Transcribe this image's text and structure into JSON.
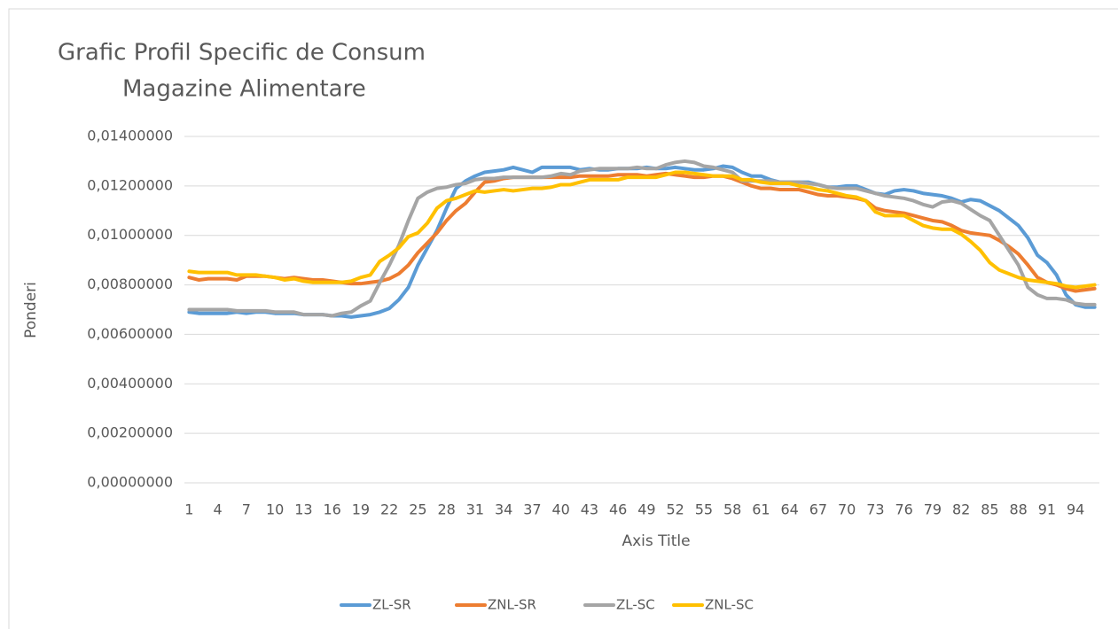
{
  "chart_data": {
    "type": "line",
    "title": [
      "Grafic Profil Specific de Consum",
      "Magazine Alimentare"
    ],
    "x_label": "Axis Title",
    "y_label": "Ponderi",
    "categories": [
      1,
      null,
      null,
      4,
      null,
      null,
      7,
      null,
      null,
      10,
      null,
      null,
      13,
      null,
      null,
      16,
      null,
      null,
      19,
      null,
      null,
      22,
      null,
      null,
      25,
      null,
      null,
      28,
      null,
      null,
      31,
      null,
      null,
      34,
      null,
      null,
      37,
      null,
      null,
      40,
      null,
      null,
      43,
      null,
      null,
      46,
      null,
      null,
      49,
      null,
      null,
      52,
      null,
      null,
      55,
      null,
      null,
      58,
      null,
      null,
      61,
      null,
      null,
      64,
      null,
      null,
      67,
      null,
      null,
      70,
      null,
      null,
      73,
      null,
      null,
      76,
      null,
      null,
      79,
      null,
      null,
      82,
      null,
      null,
      85,
      null,
      null,
      88,
      null,
      null,
      91,
      null,
      null,
      94,
      null,
      null
    ],
    "series": [
      {
        "name": "ZL-SR",
        "color": "#5b9bd5",
        "values": [
          0.0069,
          0.00685,
          0.00685,
          0.00685,
          0.00685,
          0.0069,
          0.00685,
          0.0069,
          0.0069,
          0.00685,
          0.00685,
          0.00685,
          0.0068,
          0.0068,
          0.0068,
          0.00675,
          0.00675,
          0.0067,
          0.00675,
          0.0068,
          0.0069,
          0.00705,
          0.0074,
          0.0079,
          0.0088,
          0.0095,
          0.0102,
          0.0111,
          0.0119,
          0.0122,
          0.0124,
          0.01255,
          0.0126,
          0.01265,
          0.01275,
          0.01265,
          0.01255,
          0.01275,
          0.01275,
          0.01275,
          0.01275,
          0.01265,
          0.0127,
          0.01265,
          0.01265,
          0.0127,
          0.0127,
          0.0127,
          0.01275,
          0.0127,
          0.0127,
          0.01275,
          0.0127,
          0.01265,
          0.01265,
          0.0127,
          0.0128,
          0.01275,
          0.01255,
          0.0124,
          0.0124,
          0.01225,
          0.01215,
          0.01215,
          0.01215,
          0.01215,
          0.01205,
          0.01195,
          0.01195,
          0.012,
          0.012,
          0.01185,
          0.0117,
          0.01165,
          0.0118,
          0.01185,
          0.0118,
          0.0117,
          0.01165,
          0.0116,
          0.0115,
          0.01135,
          0.01145,
          0.0114,
          0.0112,
          0.011,
          0.0107,
          0.0104,
          0.0099,
          0.0092,
          0.0089,
          0.0084,
          0.0076,
          0.0072,
          0.0071,
          0.0071
        ]
      },
      {
        "name": "ZNL-SR",
        "color": "#ed7d31",
        "values": [
          0.0083,
          0.0082,
          0.00825,
          0.00825,
          0.00825,
          0.0082,
          0.00835,
          0.00835,
          0.00835,
          0.0083,
          0.00825,
          0.0083,
          0.00825,
          0.0082,
          0.0082,
          0.00815,
          0.0081,
          0.00805,
          0.00805,
          0.0081,
          0.00815,
          0.00825,
          0.00845,
          0.0088,
          0.0093,
          0.0097,
          0.0101,
          0.0106,
          0.011,
          0.0113,
          0.01175,
          0.01215,
          0.0122,
          0.0123,
          0.01235,
          0.01235,
          0.01235,
          0.01235,
          0.01235,
          0.01235,
          0.01235,
          0.0124,
          0.0124,
          0.0124,
          0.0124,
          0.01245,
          0.01245,
          0.01245,
          0.0124,
          0.01245,
          0.0125,
          0.01245,
          0.0124,
          0.01235,
          0.01235,
          0.0124,
          0.0124,
          0.0123,
          0.01215,
          0.012,
          0.0119,
          0.0119,
          0.01185,
          0.01185,
          0.01185,
          0.01175,
          0.01165,
          0.0116,
          0.0116,
          0.01155,
          0.0115,
          0.0114,
          0.0111,
          0.011,
          0.01095,
          0.0109,
          0.0108,
          0.0107,
          0.0106,
          0.01055,
          0.0104,
          0.0102,
          0.0101,
          0.01005,
          0.01,
          0.0098,
          0.00955,
          0.00925,
          0.0088,
          0.0083,
          0.0081,
          0.008,
          0.00785,
          0.00775,
          0.0078,
          0.00785
        ]
      },
      {
        "name": "ZL-SC",
        "color": "#a5a5a5",
        "values": [
          0.007,
          0.007,
          0.007,
          0.007,
          0.007,
          0.00695,
          0.00695,
          0.00695,
          0.00695,
          0.0069,
          0.0069,
          0.0069,
          0.0068,
          0.0068,
          0.0068,
          0.00675,
          0.00685,
          0.0069,
          0.00715,
          0.00735,
          0.0081,
          0.0088,
          0.0096,
          0.0106,
          0.0115,
          0.01175,
          0.0119,
          0.01195,
          0.01205,
          0.0121,
          0.01225,
          0.0123,
          0.0123,
          0.01235,
          0.01235,
          0.01235,
          0.01235,
          0.01235,
          0.0124,
          0.0125,
          0.01245,
          0.0126,
          0.01265,
          0.0127,
          0.0127,
          0.0127,
          0.0127,
          0.01275,
          0.0127,
          0.0127,
          0.01285,
          0.01295,
          0.013,
          0.01295,
          0.0128,
          0.01275,
          0.01265,
          0.01255,
          0.0122,
          0.0122,
          0.0122,
          0.0122,
          0.01215,
          0.01215,
          0.01215,
          0.0121,
          0.01205,
          0.01195,
          0.0119,
          0.0119,
          0.0119,
          0.0118,
          0.0117,
          0.0116,
          0.01155,
          0.0115,
          0.0114,
          0.01125,
          0.01115,
          0.01135,
          0.0114,
          0.0113,
          0.01105,
          0.0108,
          0.0106,
          0.01,
          0.0094,
          0.0088,
          0.0079,
          0.0076,
          0.00745,
          0.00745,
          0.0074,
          0.00725,
          0.0072,
          0.0072
        ]
      },
      {
        "name": "ZNL-SC",
        "color": "#ffc000",
        "values": [
          0.00855,
          0.0085,
          0.0085,
          0.0085,
          0.0085,
          0.0084,
          0.0084,
          0.0084,
          0.00835,
          0.0083,
          0.0082,
          0.00825,
          0.00815,
          0.0081,
          0.0081,
          0.0081,
          0.0081,
          0.00815,
          0.0083,
          0.0084,
          0.00895,
          0.0092,
          0.0095,
          0.00995,
          0.0101,
          0.0105,
          0.0111,
          0.0114,
          0.0115,
          0.01165,
          0.0118,
          0.01175,
          0.0118,
          0.01185,
          0.0118,
          0.01185,
          0.0119,
          0.0119,
          0.01195,
          0.01205,
          0.01205,
          0.01215,
          0.01225,
          0.01225,
          0.01225,
          0.01225,
          0.01235,
          0.01235,
          0.01235,
          0.01235,
          0.01245,
          0.01255,
          0.01255,
          0.0125,
          0.01245,
          0.0124,
          0.0124,
          0.0124,
          0.01225,
          0.01225,
          0.01215,
          0.0121,
          0.0121,
          0.0121,
          0.012,
          0.01195,
          0.01185,
          0.0118,
          0.0117,
          0.0116,
          0.01155,
          0.0114,
          0.01095,
          0.0108,
          0.0108,
          0.0108,
          0.0106,
          0.0104,
          0.0103,
          0.01025,
          0.01025,
          0.01005,
          0.00975,
          0.0094,
          0.0089,
          0.0086,
          0.00845,
          0.0083,
          0.0082,
          0.00815,
          0.0081,
          0.00805,
          0.00795,
          0.0079,
          0.00795,
          0.008
        ]
      }
    ],
    "ylim": [
      0,
      0.014
    ],
    "yticks": [
      {
        "value": 0,
        "label": "0,00000000"
      },
      {
        "value": 0.002,
        "label": "0,00200000"
      },
      {
        "value": 0.004,
        "label": "0,00400000"
      },
      {
        "value": 0.006,
        "label": "0,00600000"
      },
      {
        "value": 0.008,
        "label": "0,00800000"
      },
      {
        "value": 0.01,
        "label": "0,01000000"
      },
      {
        "value": 0.012,
        "label": "0,01200000"
      },
      {
        "value": 0.014,
        "label": "0,01400000"
      }
    ],
    "grid": true,
    "legend": "bottom"
  }
}
